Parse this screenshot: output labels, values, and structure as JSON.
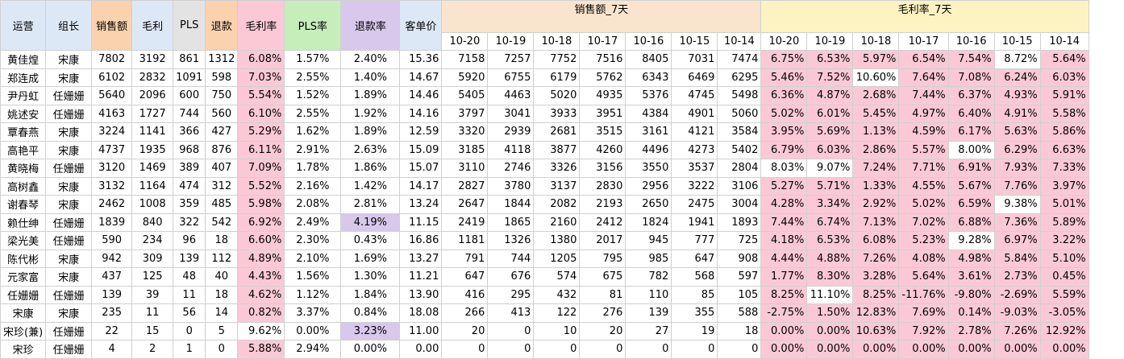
{
  "colors": {
    "header_blue": "#dde8f7",
    "header_orange": "#fbd2ae",
    "header_gray": "#e3e3e3",
    "header_pink": "#fbc9d6",
    "header_green": "#c5eebb",
    "header_lavender": "#d8c8ec",
    "group_sales_bg": "#fbe4cd",
    "group_margin_bg": "#fdf3c2",
    "highlight_pink": "#fbc9d6",
    "highlight_lavender": "#d8c8ec"
  },
  "headers": [
    "运营",
    "组长",
    "销售额",
    "毛利",
    "PLS",
    "退款",
    "毛利率",
    "PLS率",
    "退款率",
    "客单价"
  ],
  "group_headers": {
    "sales_7d": "销售额_7天",
    "margin_7d": "毛利率_7天"
  },
  "dates": [
    "10-20",
    "10-19",
    "10-18",
    "10-17",
    "10-16",
    "10-15",
    "10-14"
  ],
  "rows": [
    {
      "name": "黄佳煌",
      "leader": "宋康",
      "sales": "7802",
      "profit": "3192",
      "pls": "861",
      "refund": "1312",
      "margin": "6.08%",
      "pls_rate": "1.57%",
      "refund_rate": "2.40%",
      "aov": "15.36",
      "sales7": [
        "7158",
        "7257",
        "7752",
        "7516",
        "8405",
        "7031",
        "7474"
      ],
      "margin7": [
        "6.75%",
        "6.53%",
        "5.97%",
        "6.54%",
        "7.54%",
        "8.72%",
        "5.64%"
      ]
    },
    {
      "name": "郑连成",
      "leader": "宋康",
      "sales": "6102",
      "profit": "2832",
      "pls": "1091",
      "refund": "598",
      "margin": "7.03%",
      "pls_rate": "2.55%",
      "refund_rate": "1.40%",
      "aov": "14.67",
      "sales7": [
        "5920",
        "6755",
        "6179",
        "5762",
        "6343",
        "6469",
        "6295"
      ],
      "margin7": [
        "5.46%",
        "7.52%",
        "10.60%",
        "7.64%",
        "7.08%",
        "6.24%",
        "6.03%"
      ]
    },
    {
      "name": "尹丹虹",
      "leader": "任姗姗",
      "sales": "5640",
      "profit": "2096",
      "pls": "600",
      "refund": "750",
      "margin": "5.54%",
      "pls_rate": "1.52%",
      "refund_rate": "1.89%",
      "aov": "14.46",
      "sales7": [
        "5405",
        "4463",
        "5020",
        "4935",
        "5376",
        "4745",
        "5498"
      ],
      "margin7": [
        "6.36%",
        "4.87%",
        "2.68%",
        "7.44%",
        "6.37%",
        "4.93%",
        "5.91%"
      ]
    },
    {
      "name": "姚述安",
      "leader": "任姗姗",
      "sales": "4163",
      "profit": "1727",
      "pls": "744",
      "refund": "560",
      "margin": "6.10%",
      "pls_rate": "2.55%",
      "refund_rate": "1.92%",
      "aov": "14.16",
      "sales7": [
        "3797",
        "3041",
        "3933",
        "3951",
        "4384",
        "4901",
        "5060"
      ],
      "margin7": [
        "5.02%",
        "6.01%",
        "5.45%",
        "4.97%",
        "6.40%",
        "4.91%",
        "5.58%"
      ]
    },
    {
      "name": "覃春燕",
      "leader": "宋康",
      "sales": "3224",
      "profit": "1141",
      "pls": "366",
      "refund": "427",
      "margin": "5.29%",
      "pls_rate": "1.62%",
      "refund_rate": "1.89%",
      "aov": "12.59",
      "sales7": [
        "3320",
        "2939",
        "2681",
        "3515",
        "3161",
        "4121",
        "3584"
      ],
      "margin7": [
        "3.95%",
        "5.69%",
        "1.13%",
        "4.59%",
        "6.17%",
        "5.63%",
        "5.86%"
      ]
    },
    {
      "name": "高艳平",
      "leader": "宋康",
      "sales": "4737",
      "profit": "1935",
      "pls": "968",
      "refund": "876",
      "margin": "6.11%",
      "pls_rate": "2.91%",
      "refund_rate": "2.63%",
      "aov": "15.09",
      "sales7": [
        "3185",
        "4118",
        "3877",
        "4260",
        "4496",
        "4273",
        "5402"
      ],
      "margin7": [
        "6.79%",
        "6.03%",
        "2.86%",
        "5.57%",
        "8.00%",
        "6.29%",
        "6.63%"
      ]
    },
    {
      "name": "黄晓梅",
      "leader": "任姗姗",
      "sales": "3120",
      "profit": "1469",
      "pls": "389",
      "refund": "407",
      "margin": "7.09%",
      "pls_rate": "1.78%",
      "refund_rate": "1.86%",
      "aov": "15.07",
      "sales7": [
        "3110",
        "2746",
        "3326",
        "3156",
        "3550",
        "3537",
        "2804"
      ],
      "margin7": [
        "8.03%",
        "9.07%",
        "7.24%",
        "7.71%",
        "6.91%",
        "7.93%",
        "7.33%"
      ]
    },
    {
      "name": "高树鑫",
      "leader": "宋康",
      "sales": "3132",
      "profit": "1164",
      "pls": "474",
      "refund": "312",
      "margin": "5.52%",
      "pls_rate": "2.16%",
      "refund_rate": "1.42%",
      "aov": "14.17",
      "sales7": [
        "2827",
        "3780",
        "3137",
        "2830",
        "2956",
        "3222",
        "3106"
      ],
      "margin7": [
        "5.27%",
        "5.71%",
        "1.33%",
        "4.55%",
        "5.67%",
        "7.76%",
        "3.97%"
      ]
    },
    {
      "name": "谢春琴",
      "leader": "宋康",
      "sales": "2462",
      "profit": "1008",
      "pls": "359",
      "refund": "485",
      "margin": "5.98%",
      "pls_rate": "2.08%",
      "refund_rate": "2.81%",
      "aov": "13.24",
      "sales7": [
        "2647",
        "1844",
        "2082",
        "2193",
        "2650",
        "2475",
        "3004"
      ],
      "margin7": [
        "4.28%",
        "3.34%",
        "2.92%",
        "5.02%",
        "6.59%",
        "9.38%",
        "5.01%"
      ]
    },
    {
      "name": "赖仕绅",
      "leader": "任姗姗",
      "sales": "1839",
      "profit": "840",
      "pls": "322",
      "refund": "542",
      "margin": "6.92%",
      "pls_rate": "2.49%",
      "refund_rate": "4.19%",
      "aov": "11.15",
      "sales7": [
        "2419",
        "1865",
        "2160",
        "2412",
        "1824",
        "1941",
        "1893"
      ],
      "margin7": [
        "7.44%",
        "6.74%",
        "7.13%",
        "7.02%",
        "6.88%",
        "7.36%",
        "5.89%"
      ]
    },
    {
      "name": "梁光美",
      "leader": "任姗姗",
      "sales": "590",
      "profit": "234",
      "pls": "96",
      "refund": "18",
      "margin": "6.60%",
      "pls_rate": "2.30%",
      "refund_rate": "0.43%",
      "aov": "16.86",
      "sales7": [
        "1181",
        "1326",
        "1380",
        "2017",
        "945",
        "777",
        "725"
      ],
      "margin7": [
        "4.18%",
        "6.53%",
        "6.08%",
        "5.23%",
        "9.28%",
        "6.97%",
        "3.22%"
      ]
    },
    {
      "name": "陈代彬",
      "leader": "宋康",
      "sales": "942",
      "profit": "309",
      "pls": "139",
      "refund": "112",
      "margin": "4.89%",
      "pls_rate": "2.10%",
      "refund_rate": "1.69%",
      "aov": "13.27",
      "sales7": [
        "791",
        "744",
        "1205",
        "795",
        "985",
        "647",
        "908"
      ],
      "margin7": [
        "4.44%",
        "4.88%",
        "7.26%",
        "4.08%",
        "4.98%",
        "5.84%",
        "5.10%"
      ]
    },
    {
      "name": "元家富",
      "leader": "宋康",
      "sales": "437",
      "profit": "125",
      "pls": "48",
      "refund": "40",
      "margin": "4.43%",
      "pls_rate": "1.56%",
      "refund_rate": "1.30%",
      "aov": "11.21",
      "sales7": [
        "647",
        "676",
        "574",
        "675",
        "782",
        "568",
        "597"
      ],
      "margin7": [
        "1.77%",
        "8.30%",
        "3.28%",
        "5.64%",
        "3.61%",
        "2.73%",
        "0.45%"
      ]
    },
    {
      "name": "任姗姗",
      "leader": "任姗姗",
      "sales": "139",
      "profit": "39",
      "pls": "11",
      "refund": "18",
      "margin": "4.62%",
      "pls_rate": "1.12%",
      "refund_rate": "1.84%",
      "aov": "13.90",
      "sales7": [
        "416",
        "295",
        "432",
        "81",
        "110",
        "85",
        "105"
      ],
      "margin7": [
        "8.25%",
        "11.10%",
        "8.25%",
        "-11.76%",
        "-9.80%",
        "-2.69%",
        "5.59%"
      ]
    },
    {
      "name": "宋康",
      "leader": "宋康",
      "sales": "235",
      "profit": "11",
      "pls": "56",
      "refund": "14",
      "margin": "0.82%",
      "pls_rate": "3.37%",
      "refund_rate": "0.84%",
      "aov": "18.08",
      "sales7": [
        "266",
        "413",
        "122",
        "276",
        "139",
        "355",
        "588"
      ],
      "margin7": [
        "-2.75%",
        "1.50%",
        "12.83%",
        "7.69%",
        "0.14%",
        "-9.03%",
        "-3.05%"
      ]
    },
    {
      "name": "宋珍(兼)",
      "leader": "任姗姗",
      "sales": "22",
      "profit": "15",
      "pls": "0",
      "refund": "5",
      "margin": "9.62%",
      "pls_rate": "0.00%",
      "refund_rate": "3.23%",
      "aov": "11.00",
      "sales7": [
        "20",
        "0",
        "10",
        "20",
        "27",
        "19",
        "18"
      ],
      "margin7": [
        "0.00%",
        "0.00%",
        "10.63%",
        "7.92%",
        "2.78%",
        "7.26%",
        "12.92%"
      ]
    },
    {
      "name": "宋珍",
      "leader": "任姗姗",
      "sales": "4",
      "profit": "2",
      "pls": "1",
      "refund": "0",
      "margin": "5.88%",
      "pls_rate": "2.94%",
      "refund_rate": "0.00%",
      "aov": "0.00",
      "sales7": [
        "0",
        "0",
        "0",
        "0",
        "0",
        "0",
        "0"
      ],
      "margin7": [
        "0.00%",
        "0.00%",
        "0.00%",
        "0.00%",
        "0.00%",
        "0.00%",
        "0.00%"
      ]
    }
  ],
  "pink_margin_rows": [
    0,
    1,
    2,
    3,
    4,
    5,
    6,
    7,
    8,
    9,
    10,
    11,
    12,
    13,
    14,
    16
  ],
  "lavender_refund_rows": [
    9,
    15
  ],
  "white_margin7_cells": [
    [
      0,
      5
    ],
    [
      1,
      2
    ],
    [
      5,
      4
    ],
    [
      6,
      0
    ],
    [
      6,
      1
    ],
    [
      8,
      5
    ],
    [
      10,
      4
    ],
    [
      13,
      1
    ]
  ]
}
